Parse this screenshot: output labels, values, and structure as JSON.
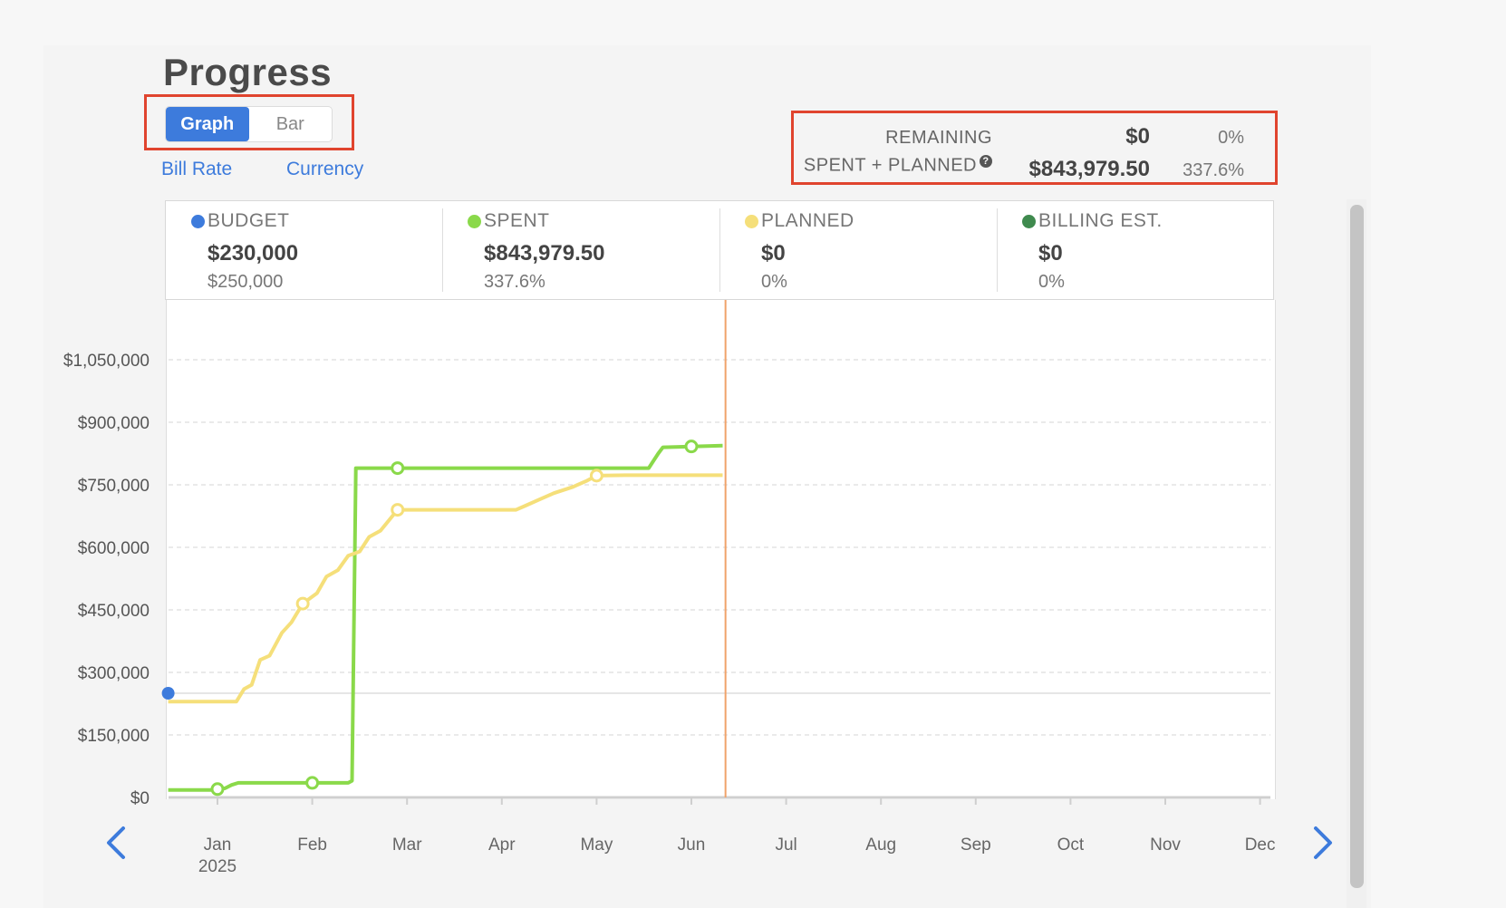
{
  "page": {
    "title": "Progress"
  },
  "view_toggle": {
    "options": [
      "Graph",
      "Bar"
    ],
    "selected": "Graph"
  },
  "links": {
    "bill_rate": "Bill Rate",
    "currency": "Currency"
  },
  "summary": {
    "remaining": {
      "label": "REMAINING",
      "value": "$0",
      "percent": "0%"
    },
    "spent_planned": {
      "label": "SPENT + PLANNED",
      "help": "?",
      "value": "$843,979.50",
      "percent": "337.6%"
    }
  },
  "legend": [
    {
      "name": "BUDGET",
      "amount": "$230,000",
      "sub": "$250,000",
      "color": "#3d7bdc"
    },
    {
      "name": "SPENT",
      "amount": "$843,979.50",
      "sub": "337.6%",
      "color": "#8ad94a"
    },
    {
      "name": "PLANNED",
      "amount": "$0",
      "sub": "0%",
      "color": "#f5df7a"
    },
    {
      "name": "BILLING EST.",
      "amount": "$0",
      "sub": "0%",
      "color": "#3f8a4e"
    }
  ],
  "chart_data": {
    "type": "line",
    "y_ticks": [
      "$0",
      "$150,000",
      "$300,000",
      "$450,000",
      "$600,000",
      "$750,000",
      "$900,000",
      "$1,050,000"
    ],
    "y_tick_values": [
      0,
      150000,
      300000,
      450000,
      600000,
      750000,
      900000,
      1050000
    ],
    "ylim": [
      0,
      1150000
    ],
    "x_ticks": [
      "Jan",
      "Feb",
      "Mar",
      "Apr",
      "May",
      "Jun",
      "Jul",
      "Aug",
      "Sep",
      "Oct",
      "Nov",
      "Dec"
    ],
    "x_year": "2025",
    "today_marker_month": 5.36,
    "budget_point": {
      "x": -0.52,
      "y": 250000
    },
    "series": [
      {
        "name": "SPENT",
        "color": "#8ad94a",
        "points": [
          [
            -0.52,
            18000
          ],
          [
            -0.05,
            18000
          ],
          [
            0.0,
            20000
          ],
          [
            0.08,
            22000
          ],
          [
            0.15,
            30000
          ],
          [
            0.22,
            35000
          ],
          [
            1.0,
            35000
          ],
          [
            1.38,
            35000
          ],
          [
            1.42,
            40000
          ],
          [
            1.46,
            790000
          ],
          [
            1.9,
            790000
          ],
          [
            3.0,
            790000
          ],
          [
            4.4,
            790000
          ],
          [
            4.55,
            790000
          ],
          [
            4.65,
            825000
          ],
          [
            4.7,
            840000
          ],
          [
            5.0,
            842000
          ],
          [
            5.33,
            843979
          ]
        ],
        "markers": [
          [
            0.0,
            20000
          ],
          [
            1.0,
            35000
          ],
          [
            1.9,
            790000
          ],
          [
            5.0,
            842000
          ]
        ]
      },
      {
        "name": "PLANNED",
        "color": "#f5df7a",
        "points": [
          [
            -0.52,
            230000
          ],
          [
            0.2,
            230000
          ],
          [
            0.28,
            260000
          ],
          [
            0.36,
            270000
          ],
          [
            0.45,
            330000
          ],
          [
            0.55,
            340000
          ],
          [
            0.68,
            395000
          ],
          [
            0.78,
            420000
          ],
          [
            0.9,
            465000
          ],
          [
            1.05,
            490000
          ],
          [
            1.15,
            530000
          ],
          [
            1.27,
            545000
          ],
          [
            1.38,
            580000
          ],
          [
            1.5,
            590000
          ],
          [
            1.6,
            625000
          ],
          [
            1.72,
            640000
          ],
          [
            1.9,
            690000
          ],
          [
            3.15,
            690000
          ],
          [
            3.25,
            700000
          ],
          [
            3.4,
            715000
          ],
          [
            3.55,
            730000
          ],
          [
            3.75,
            745000
          ],
          [
            3.9,
            760000
          ],
          [
            4.0,
            772000
          ],
          [
            4.3,
            773000
          ],
          [
            5.33,
            773000
          ]
        ],
        "markers": [
          [
            0.9,
            465000
          ],
          [
            1.9,
            690000
          ],
          [
            4.0,
            772000
          ]
        ]
      }
    ]
  }
}
